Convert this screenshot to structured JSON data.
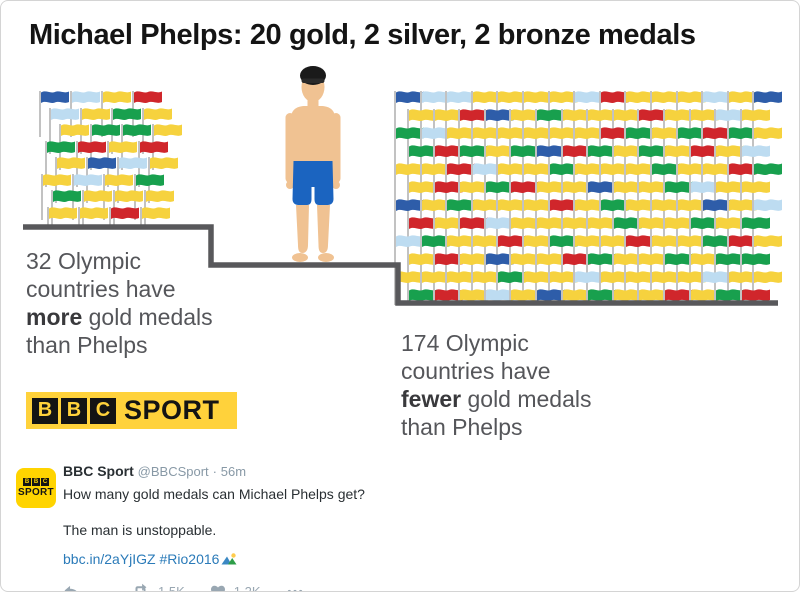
{
  "infographic": {
    "title": "Michael Phelps: 20 gold, 2 silver, 2 bronze medals",
    "left_caption": {
      "line1": "32 Olympic",
      "line2": "countries have",
      "line3_bold": "more",
      "line3_rest": " gold medals",
      "line4": "than Phelps"
    },
    "right_caption": {
      "line1": "174 Olympic",
      "line2": "countries have",
      "line3_bold": "fewer",
      "line3_rest": " gold medals",
      "line4": "than Phelps"
    },
    "bbc_logo": {
      "letters": [
        "B",
        "B",
        "C"
      ],
      "word": "SPORT"
    }
  },
  "flags": {
    "palette": {
      "Y": "#F6D23E",
      "R": "#D0262B",
      "G": "#18A04E",
      "B": "#2E5DA9",
      "L": "#BDDCF1"
    },
    "pole_color": "#C2C2C2",
    "left_rows": [
      "BLYR",
      "LYGY",
      "YGGY",
      "GRYR",
      "YBLY",
      "YLYG",
      "GYYY",
      "YYRY"
    ],
    "right_rows": [
      "BLLYYYYLRYYYLYB",
      "YYRBYGYYYRYYLY",
      "GLYYYYYYRGYGRGY",
      "GRGYGBRGYGYRYL",
      "YYRLYYGYYYGYYRG",
      "YRYGRYYBYYGLYY",
      "BYGYYYRYGYYYBYL",
      "RYRLYYYYGYYGYG",
      "LGYYRYGYYRYYGRY",
      "YRYBYYRGYYGYGG",
      "YYYYGYYLYYYYLYY",
      "GRYLYBYGYYRYGR"
    ]
  },
  "tweet": {
    "name": "BBC Sport",
    "handle": "@BBCSport",
    "dot": "·",
    "time": "56m",
    "text_line1": "How many gold medals can Michael Phelps get?",
    "text_line2": "The man is unstoppable.",
    "link": "bbc.in/2aYjIGZ",
    "hashtag": "#Rio2016",
    "retweet_count": "1.5K",
    "like_count": "1.2K",
    "avatar": {
      "letters": [
        "B",
        "B",
        "C"
      ],
      "word": "SPORT"
    }
  },
  "colors": {
    "bbc_yellow": "#FFD23B",
    "podium_gray": "#58585B",
    "link_blue": "#2B7BB9",
    "action_gray": "#99A7B2",
    "skin": "#F0C292",
    "trunks_blue": "#1B64C0",
    "cap_black": "#1A1A1A"
  },
  "chart_data": {
    "type": "pictogram",
    "title": "Michael Phelps: 20 gold, 2 silver, 2 bronze medals",
    "phelps_medals": {
      "gold": 20,
      "silver": 2,
      "bronze": 2
    },
    "groups": [
      {
        "label": "32 Olympic countries have more gold medals than Phelps",
        "value": 32,
        "icon": "flag",
        "podium_level": "higher than Phelps"
      },
      {
        "label": "174 Olympic countries have fewer gold medals than Phelps",
        "value": 174,
        "icon": "flag",
        "podium_level": "lower than Phelps"
      }
    ],
    "source_logo": "BBC SPORT"
  }
}
